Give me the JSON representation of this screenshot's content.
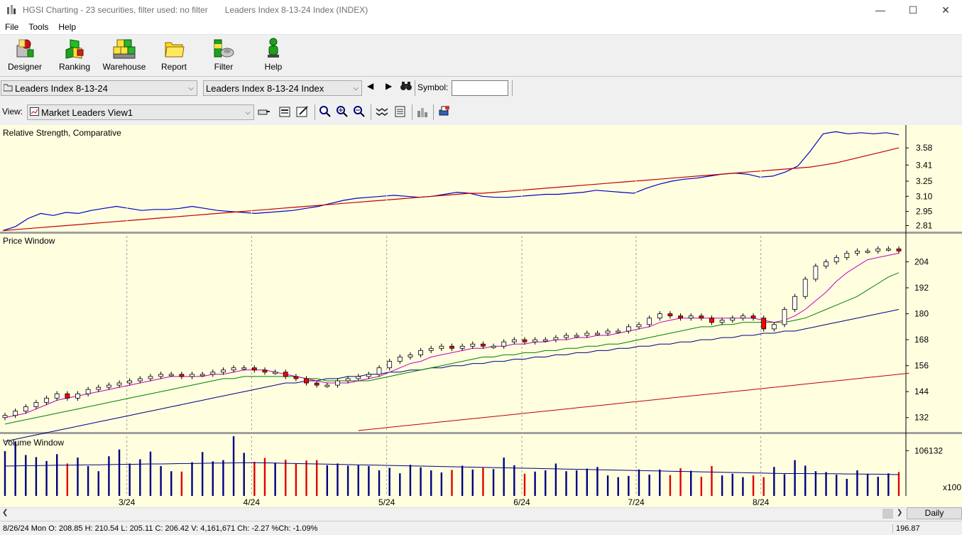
{
  "window": {
    "app_title": "HGSI Charting - 23 securities, filter used: no filter",
    "security_title": "Leaders Index 8-13-24 Index (INDEX)",
    "minimize": "—",
    "maximize": "☐",
    "close": "✕"
  },
  "menu": [
    "File",
    "Tools",
    "Help"
  ],
  "toolbar": [
    {
      "label": "Designer",
      "icon": "designer-icon"
    },
    {
      "label": "Ranking",
      "icon": "ranking-icon"
    },
    {
      "label": "Warehouse",
      "icon": "warehouse-icon"
    },
    {
      "label": "Report",
      "icon": "report-icon"
    },
    {
      "label": "Filter",
      "icon": "filter-icon"
    },
    {
      "label": "Help",
      "icon": "help-icon"
    }
  ],
  "selectors": {
    "list_value": "Leaders Index 8-13-24",
    "security_value": "Leaders Index 8-13-24 Index",
    "symbol_label": "Symbol:",
    "symbol_value": ""
  },
  "view": {
    "label": "View:",
    "value": "Market Leaders View1"
  },
  "panes": {
    "rs_title": "Relative Strength, Comparative",
    "price_title": "Price Window",
    "volume_title": "Volume Window",
    "volume_multiplier": "x100"
  },
  "daily_button": "Daily",
  "status": {
    "ohlc": "8/26/24 Mon O: 208.85 H: 210.54 L: 205.11 C: 206.42 V: 4,161,671 Ch: -2.27 %Ch: -1.09%",
    "cursor_value": "196.87"
  },
  "colors": {
    "chart_bg": "#ffffe0",
    "up_candle": "#ffffff",
    "down_candle": "#ff0000",
    "rs_line": "#0000c0",
    "rs_ma": "#c00000",
    "ma_fast": "#c000c0",
    "ma_mid": "#008000",
    "ma_slow": "#000080",
    "ma_long": "#c00000",
    "vol_up": "#000080",
    "vol_down": "#e00000"
  },
  "chart_data": [
    {
      "type": "line",
      "title": "Relative Strength, Comparative",
      "y_ticks": [
        3.58,
        3.41,
        3.25,
        3.1,
        2.95,
        2.81
      ],
      "ylim": [
        2.75,
        3.75
      ],
      "series": [
        {
          "values": [
            2.76,
            2.8,
            2.88,
            2.93,
            2.91,
            2.94,
            2.93,
            2.96,
            2.98,
            3.0,
            2.98,
            2.96,
            2.97,
            2.97,
            2.98,
            3.0,
            2.98,
            2.96,
            2.95,
            2.94,
            2.93,
            2.94,
            2.95,
            2.96,
            2.98,
            3.0,
            3.03,
            3.06,
            3.08,
            3.09,
            3.1,
            3.11,
            3.1,
            3.09,
            3.1,
            3.12,
            3.14,
            3.13,
            3.1,
            3.09,
            3.09,
            3.1,
            3.11,
            3.12,
            3.12,
            3.13,
            3.14,
            3.16,
            3.15,
            3.14,
            3.13,
            3.18,
            3.22,
            3.25,
            3.27,
            3.28,
            3.3,
            3.32,
            3.33,
            3.32,
            3.29,
            3.3,
            3.34,
            3.4,
            3.55,
            3.72,
            3.74,
            3.72,
            3.73,
            3.72,
            3.73,
            3.71
          ]
        },
        {
          "values": [
            2.76,
            2.77,
            2.78,
            2.79,
            2.8,
            2.81,
            2.82,
            2.83,
            2.84,
            2.85,
            2.86,
            2.87,
            2.88,
            2.89,
            2.9,
            2.91,
            2.92,
            2.93,
            2.94,
            2.95,
            2.96,
            2.97,
            2.98,
            2.99,
            3.0,
            3.01,
            3.02,
            3.03,
            3.04,
            3.05,
            3.06,
            3.07,
            3.08,
            3.09,
            3.1,
            3.11,
            3.12,
            3.13,
            3.13,
            3.14,
            3.15,
            3.16,
            3.17,
            3.18,
            3.19,
            3.2,
            3.21,
            3.22,
            3.23,
            3.24,
            3.25,
            3.26,
            3.27,
            3.28,
            3.29,
            3.3,
            3.31,
            3.32,
            3.33,
            3.34,
            3.35,
            3.36,
            3.37,
            3.38,
            3.39,
            3.41,
            3.43,
            3.46,
            3.49,
            3.52,
            3.55,
            3.58
          ]
        }
      ]
    },
    {
      "type": "candlestick",
      "title": "Price Window",
      "x_ticks": [
        "3/24",
        "4/24",
        "5/24",
        "6/24",
        "7/24",
        "8/24"
      ],
      "y_ticks": [
        204,
        192,
        180,
        168,
        156,
        144,
        132
      ],
      "ylim": [
        126,
        216
      ],
      "close": [
        133,
        135,
        137,
        139,
        141,
        143,
        141,
        143,
        145,
        146,
        147,
        148,
        149,
        150,
        151,
        152,
        152,
        151,
        152,
        152,
        153,
        154,
        155,
        155,
        154,
        153,
        153,
        151,
        150,
        148,
        147,
        147,
        149,
        150,
        151,
        152,
        155,
        158,
        160,
        161,
        163,
        164,
        165,
        164,
        165,
        166,
        165,
        165,
        167,
        168,
        167,
        168,
        168,
        169,
        170,
        170,
        171,
        171,
        172,
        172,
        174,
        175,
        178,
        180,
        179,
        178,
        179,
        178,
        176,
        177,
        178,
        179,
        178,
        173,
        175,
        182,
        188,
        196,
        202,
        204,
        206,
        208,
        209,
        209,
        210,
        210,
        209
      ],
      "ma_fast": [
        132,
        133,
        134,
        136,
        138,
        140,
        141,
        142,
        143,
        144,
        145,
        146,
        147,
        148,
        149,
        150,
        151,
        151,
        151,
        151,
        152,
        152,
        153,
        154,
        154,
        154,
        153,
        152,
        151,
        150,
        149,
        148,
        148,
        148,
        149,
        150,
        151,
        153,
        155,
        157,
        158,
        160,
        161,
        162,
        163,
        164,
        164,
        165,
        165,
        166,
        166,
        167,
        167,
        168,
        168,
        169,
        169,
        170,
        170,
        171,
        172,
        173,
        174,
        176,
        177,
        178,
        178,
        178,
        178,
        178,
        178,
        178,
        178,
        177,
        176,
        177,
        179,
        182,
        186,
        190,
        195,
        199,
        202,
        205,
        206,
        207,
        208
      ],
      "ma_mid": [
        129,
        130,
        131,
        132,
        133,
        134,
        135,
        136,
        137,
        138,
        139,
        140,
        141,
        142,
        143,
        144,
        145,
        146,
        147,
        148,
        149,
        150,
        150,
        151,
        151,
        151,
        151,
        151,
        151,
        150,
        150,
        149,
        149,
        149,
        149,
        149,
        150,
        151,
        152,
        153,
        154,
        155,
        156,
        157,
        158,
        159,
        160,
        160,
        161,
        161,
        162,
        162,
        163,
        163,
        164,
        164,
        165,
        165,
        166,
        166,
        167,
        168,
        169,
        170,
        171,
        172,
        173,
        174,
        174,
        175,
        175,
        176,
        176,
        176,
        176,
        176,
        177,
        178,
        180,
        182,
        184,
        186,
        188,
        191,
        194,
        197,
        199
      ],
      "ma_slow": [
        121,
        122,
        123,
        124,
        125,
        126,
        127,
        128,
        129,
        130,
        131,
        132,
        133,
        134,
        135,
        136,
        137,
        138,
        139,
        140,
        141,
        142,
        143,
        144,
        145,
        146,
        147,
        148,
        148,
        149,
        149,
        150,
        150,
        151,
        151,
        152,
        152,
        153,
        153,
        154,
        154,
        155,
        155,
        156,
        156,
        157,
        157,
        158,
        158,
        159,
        159,
        160,
        160,
        161,
        161,
        162,
        162,
        163,
        163,
        164,
        164,
        165,
        165,
        166,
        166,
        167,
        167,
        168,
        168,
        169,
        169,
        170,
        170,
        171,
        171,
        172,
        172,
        173,
        174,
        175,
        176,
        177,
        178,
        179,
        180,
        181,
        182
      ],
      "ma_long_start_index": 34,
      "ma_long": [
        126,
        126.5,
        127,
        127.5,
        128,
        128.5,
        129,
        129.5,
        130,
        130.5,
        131,
        131.5,
        132,
        132.5,
        133,
        133.5,
        134,
        134.5,
        135,
        135.5,
        136,
        136.5,
        137,
        137.5,
        138,
        138.5,
        139,
        139.5,
        140,
        140.5,
        141,
        141.5,
        142,
        142.5,
        143,
        143.5,
        144,
        144.5,
        145,
        145.5,
        146,
        146.5,
        147,
        147.5,
        148,
        148.5,
        149,
        149.5,
        150,
        150.5,
        151,
        151.5,
        152,
        152.5
      ]
    },
    {
      "type": "bar",
      "title": "Volume Window",
      "y_ticks": [
        106132
      ],
      "y_unit": "x100",
      "ylim": [
        0,
        140000
      ],
      "values": [
        105000,
        127000,
        96000,
        91000,
        82000,
        98000,
        76000,
        90000,
        70000,
        58000,
        93000,
        109000,
        76000,
        86000,
        104000,
        70000,
        58000,
        57000,
        79000,
        103000,
        81000,
        84000,
        140000,
        101000,
        80000,
        89000,
        78000,
        85000,
        76000,
        83000,
        84000,
        72000,
        76000,
        71000,
        72000,
        70000,
        60000,
        66000,
        53000,
        73000,
        67000,
        60000,
        55000,
        61000,
        71000,
        62000,
        66000,
        63000,
        90000,
        72000,
        52000,
        57000,
        60000,
        76000,
        58000,
        60000,
        64000,
        68000,
        48000,
        44000,
        47000,
        62000,
        50000,
        62000,
        49000,
        65000,
        59000,
        45000,
        70000,
        48000,
        52000,
        44000,
        48000,
        44000,
        68000,
        51000,
        84000,
        71000,
        58000,
        56000,
        50000,
        40000,
        60000,
        52000,
        45000,
        53000,
        56000
      ],
      "ma": [
        70000,
        70500,
        71000,
        71000,
        71500,
        72000,
        72000,
        72500,
        73000,
        73000,
        73500,
        74000,
        74000,
        74500,
        75000,
        75000,
        75500,
        76000,
        76000,
        76500,
        77000,
        77000,
        77500,
        78000,
        78000,
        77500,
        77000,
        76500,
        76000,
        75500,
        75000,
        74500,
        74000,
        73500,
        73000,
        72500,
        72000,
        71500,
        71000,
        70500,
        70000,
        69500,
        69000,
        68500,
        68000,
        67500,
        67000,
        66500,
        66000,
        65500,
        65000,
        64500,
        64000,
        63500,
        63000,
        62500,
        62000,
        61500,
        61000,
        60500,
        60000,
        59500,
        59000,
        58500,
        58000,
        57500,
        57000,
        56500,
        56000,
        55500,
        55000,
        54500,
        54000,
        53500,
        53000,
        52500,
        52500,
        52500,
        52000,
        52000,
        52000,
        51500,
        51500,
        51000,
        51000,
        50500,
        50000
      ]
    }
  ]
}
